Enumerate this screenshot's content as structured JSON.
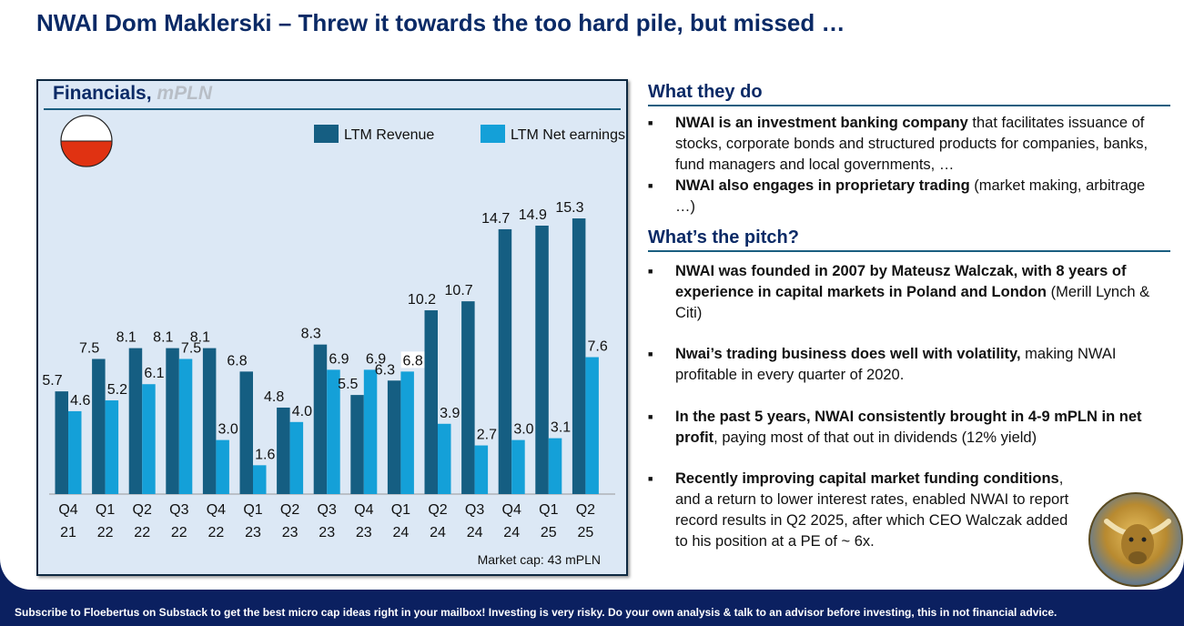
{
  "title": "NWAI Dom Maklerski – Threw it towards the too hard pile, but missed …",
  "financials": {
    "title": "Financials,",
    "unit": "mPLN",
    "market_cap": "Market cap: 43 mPLN"
  },
  "chart_data": {
    "type": "bar",
    "categories": [
      [
        "Q4",
        "21"
      ],
      [
        "Q1",
        "22"
      ],
      [
        "Q2",
        "22"
      ],
      [
        "Q3",
        "22"
      ],
      [
        "Q4",
        "22"
      ],
      [
        "Q1",
        "23"
      ],
      [
        "Q2",
        "23"
      ],
      [
        "Q3",
        "23"
      ],
      [
        "Q4",
        "23"
      ],
      [
        "Q1",
        "24"
      ],
      [
        "Q2",
        "24"
      ],
      [
        "Q3",
        "24"
      ],
      [
        "Q4",
        "24"
      ],
      [
        "Q1",
        "25"
      ],
      [
        "Q2",
        "25"
      ]
    ],
    "series": [
      {
        "name": "LTM Revenue",
        "color": "#155e82",
        "values": [
          5.7,
          7.5,
          8.1,
          8.1,
          8.1,
          6.8,
          4.8,
          8.3,
          5.5,
          6.3,
          10.2,
          10.7,
          14.7,
          14.9,
          15.3
        ]
      },
      {
        "name": "LTM Net earnings",
        "color": "#14a0d8",
        "values": [
          4.6,
          5.2,
          6.1,
          7.5,
          3.0,
          1.6,
          4.0,
          6.9,
          6.9,
          6.8,
          3.9,
          2.7,
          3.0,
          3.1,
          7.6
        ]
      }
    ],
    "ylim": [
      0,
      16
    ],
    "xlabel": "",
    "ylabel": "",
    "legend": "top-right",
    "grid": false
  },
  "what_they_do": {
    "heading": "What they do",
    "bullets": [
      {
        "bold": "NWAI is an investment banking company",
        "text": " that facilitates issuance of stocks, corporate bonds and structured products for companies, banks, fund managers and local governments, …"
      },
      {
        "bold": "NWAI also engages in proprietary trading",
        "text": " (market making, arbitrage …)"
      }
    ]
  },
  "pitch": {
    "heading": "What’s the pitch?",
    "bullets": [
      {
        "bold": "NWAI was founded in 2007 by Mateusz Walczak, with 8 years of experience in capital markets in Poland and London",
        "text": " (Merill Lynch & Citi)"
      },
      {
        "bold": "Nwai’s trading business does well with volatility,",
        "text": " making NWAI profitable in every quarter of 2020."
      },
      {
        "bold": "In the past 5 years, NWAI consistently brought in 4-9 mPLN in net profit",
        "text": ", paying  most of that out in dividends (12% yield)"
      },
      {
        "bold": "Recently improving capital market funding conditions",
        "text": ", and a return to lower interest rates, enabled NWAI to report record results in Q2 2025, after which CEO Walczak added to his position at a PE of ~ 6x."
      }
    ]
  },
  "footer": "Subscribe to Floebertus on Substack to get the best micro cap ideas right in your mailbox!   Investing is very risky.   Do your own analysis & talk to an advisor before investing, this in not financial advice."
}
